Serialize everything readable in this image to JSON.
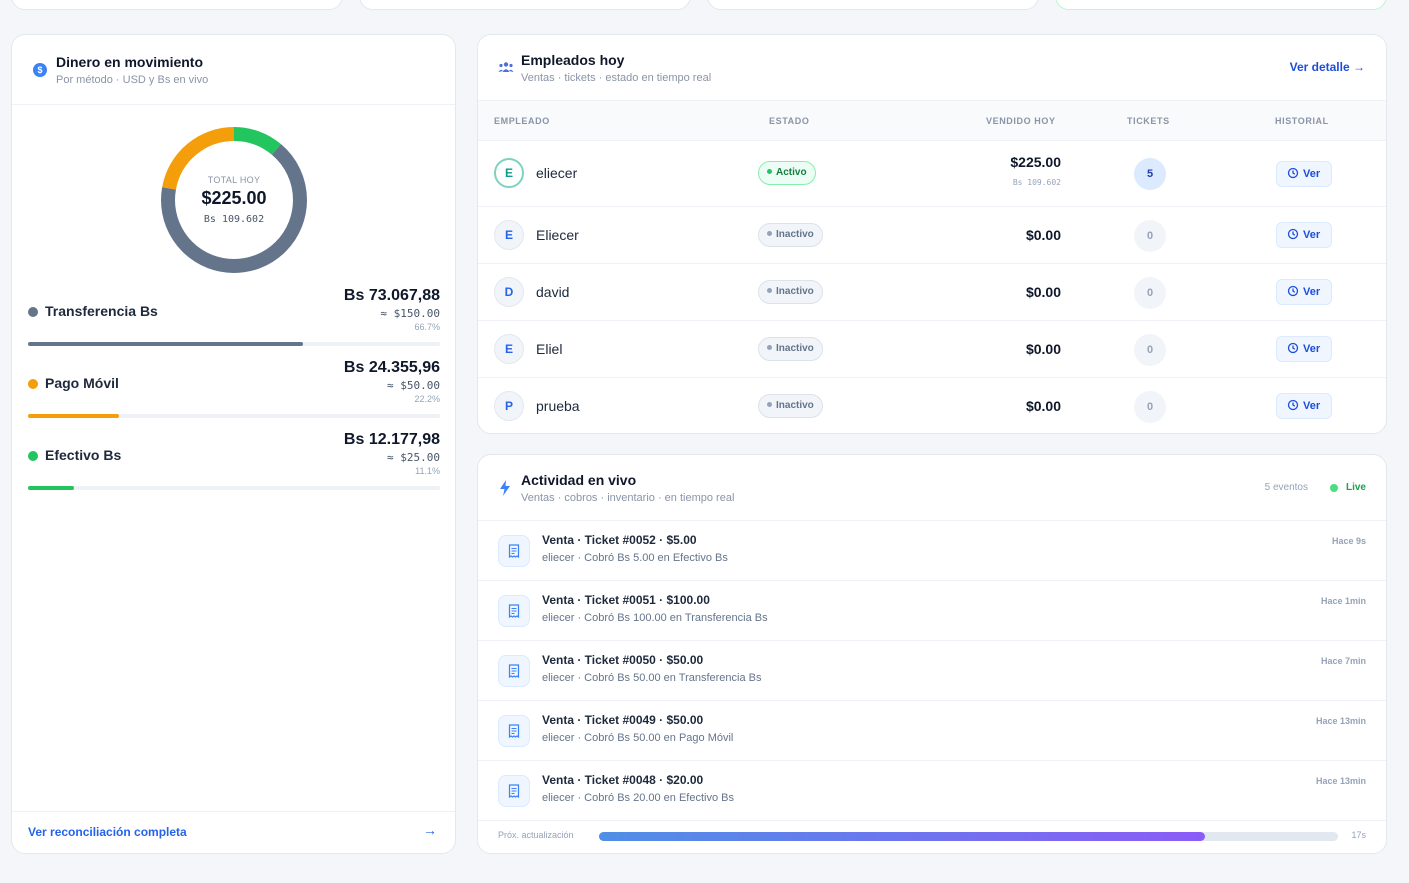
{
  "money": {
    "title": "Dinero en movimiento",
    "subtitle": "Por método · USD y Bs en vivo",
    "icon": "dollar-icon",
    "total_label": "TOTAL HOY",
    "total_usd": "$225.00",
    "total_bs": "Bs 109.602",
    "methods": [
      {
        "name": "Transferencia Bs",
        "bs": "Bs 73.067,88",
        "usd": "≈ $150.00",
        "pct": "66.7%",
        "share": 0.667,
        "color": "#64748b"
      },
      {
        "name": "Pago Móvil",
        "bs": "Bs 24.355,96",
        "usd": "≈ $50.00",
        "pct": "22.2%",
        "share": 0.222,
        "color": "#f59e0b"
      },
      {
        "name": "Efectivo Bs",
        "bs": "Bs 12.177,98",
        "usd": "≈ $25.00",
        "pct": "11.1%",
        "share": 0.111,
        "color": "#22c55e"
      }
    ],
    "footer_link": "Ver reconciliación completa"
  },
  "employees": {
    "title": "Empleados hoy",
    "subtitle": "Ventas · tickets · estado en tiempo real",
    "detail_link": "Ver detalle",
    "columns": [
      "EMPLEADO",
      "ESTADO",
      "VENDIDO HOY",
      "TICKETS",
      "HISTORIAL"
    ],
    "rows": [
      {
        "initial": "E",
        "name": "eliecer",
        "status": "Activo",
        "sold": "$225.00",
        "sold_bs": "Bs 109.602",
        "tickets": "5",
        "action": "Ver"
      },
      {
        "initial": "E",
        "name": "Eliecer",
        "status": "Inactivo",
        "sold": "$0.00",
        "tickets": "0",
        "action": "Ver"
      },
      {
        "initial": "D",
        "name": "david",
        "status": "Inactivo",
        "sold": "$0.00",
        "tickets": "0",
        "action": "Ver"
      },
      {
        "initial": "E",
        "name": "Eliel",
        "status": "Inactivo",
        "sold": "$0.00",
        "tickets": "0",
        "action": "Ver"
      },
      {
        "initial": "P",
        "name": "prueba",
        "status": "Inactivo",
        "sold": "$0.00",
        "tickets": "0",
        "action": "Ver"
      }
    ]
  },
  "activity": {
    "title": "Actividad en vivo",
    "subtitle": "Ventas · cobros · inventario · en tiempo real",
    "events_count": "5 eventos",
    "live_label": "Live",
    "items": [
      {
        "title": "Venta · Ticket #0052 · $5.00",
        "desc": "eliecer · Cobró Bs 5.00 en Efectivo Bs",
        "time": "Hace 9s"
      },
      {
        "title": "Venta · Ticket #0051 · $100.00",
        "desc": "eliecer · Cobró Bs 100.00 en Transferencia Bs",
        "time": "Hace 1min"
      },
      {
        "title": "Venta · Ticket #0050 · $50.00",
        "desc": "eliecer · Cobró Bs 50.00 en Transferencia Bs",
        "time": "Hace 7min"
      },
      {
        "title": "Venta · Ticket #0049 · $50.00",
        "desc": "eliecer · Cobró Bs 50.00 en Pago Móvil",
        "time": "Hace 13min"
      },
      {
        "title": "Venta · Ticket #0048 · $20.00",
        "desc": "eliecer · Cobró Bs 20.00 en Efectivo Bs",
        "time": "Hace 13min"
      }
    ],
    "next_update_label": "Próx. actualización",
    "next_update_value": "17s",
    "next_update_progress": 0.82
  }
}
